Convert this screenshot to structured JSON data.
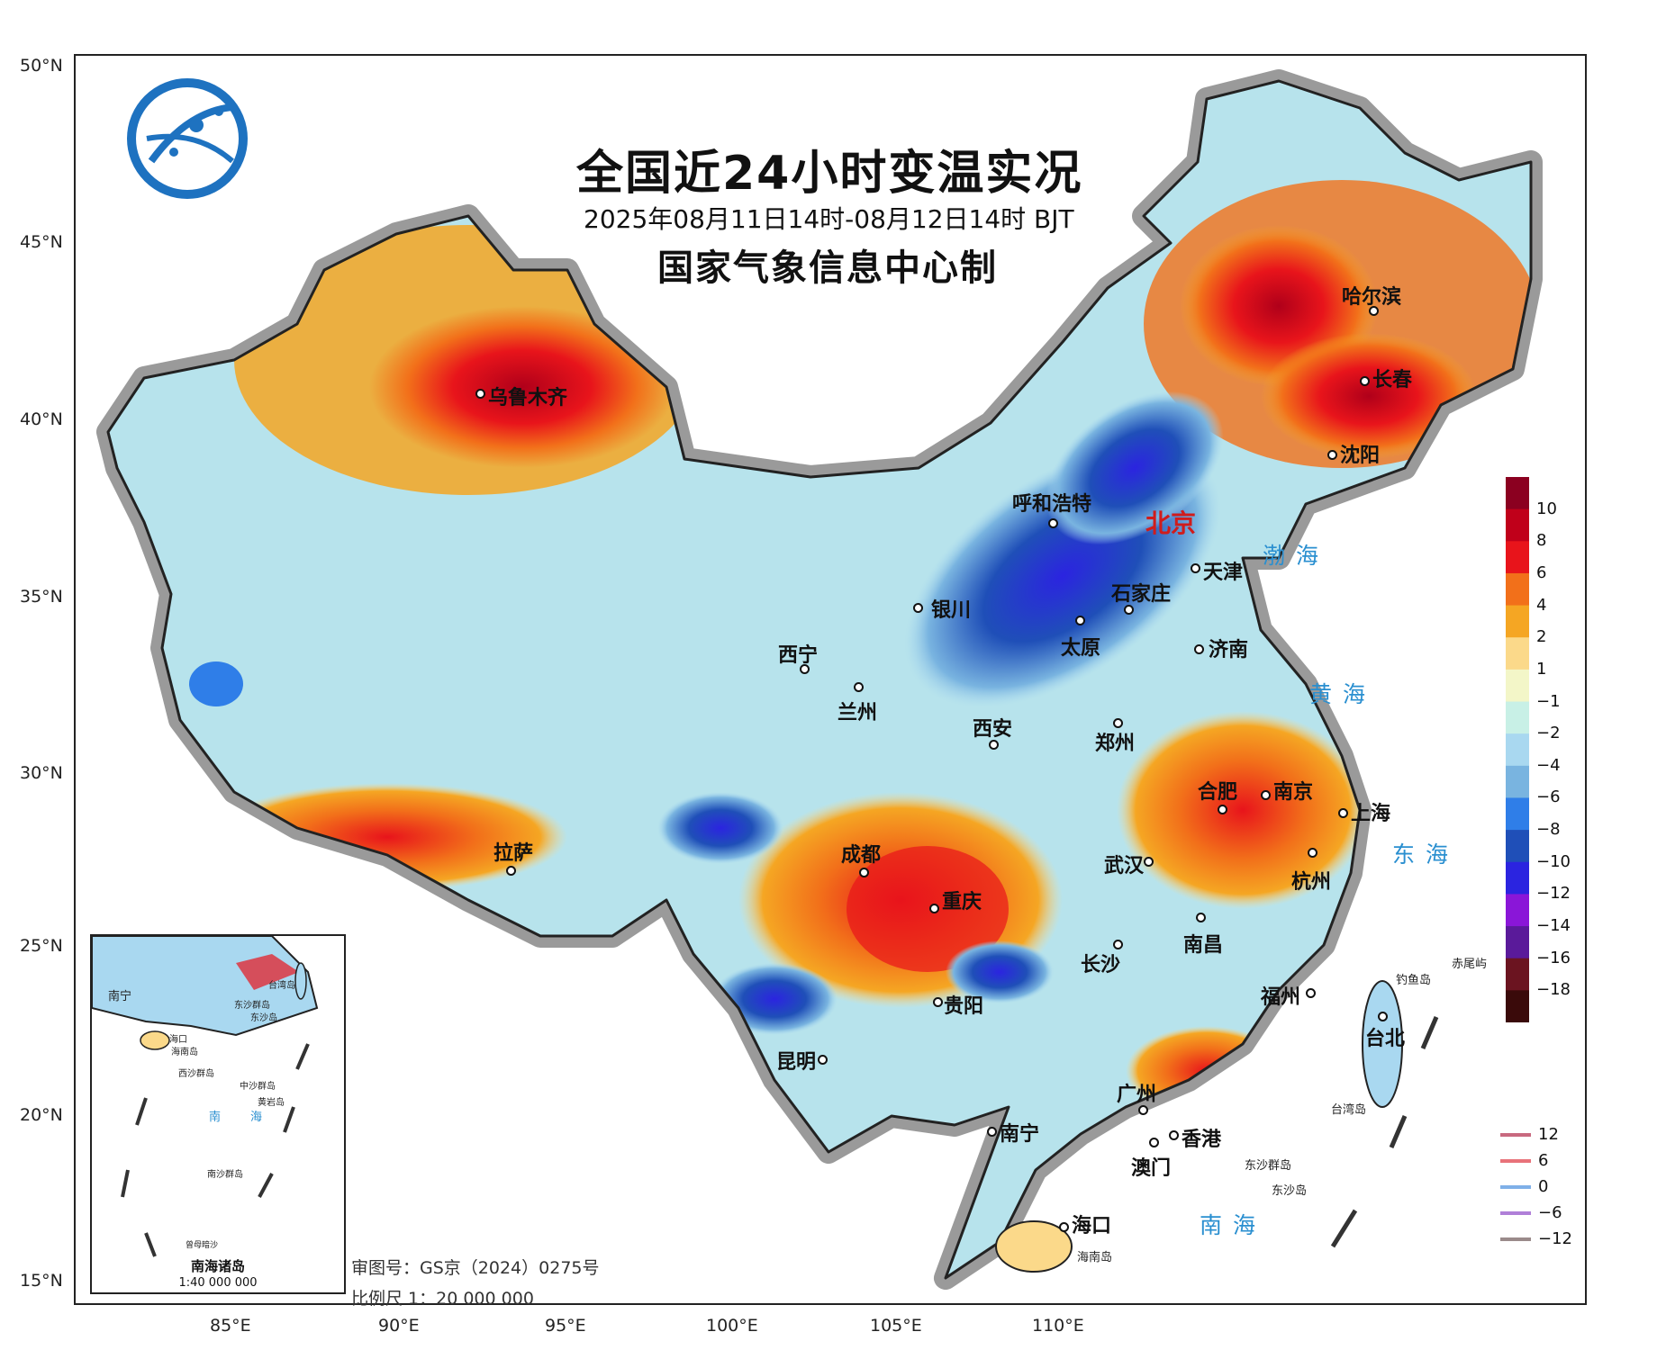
{
  "map": {
    "title": "全国近24小时变温实况",
    "period": "2025年08月11日14时-08月12日14时 BJT",
    "maker": "国家气象信息中心制",
    "approval_no": "审图号：GS京（2024）0275号",
    "scale": "比例尺 1：20 000 000",
    "lat_labels": [
      "50°N",
      "45°N",
      "40°N",
      "35°N",
      "30°N",
      "25°N",
      "20°N",
      "15°N"
    ],
    "lon_labels": [
      "85°E",
      "90°E",
      "95°E",
      "100°E",
      "105°E",
      "110°E"
    ]
  },
  "cities": {
    "urumqi": "乌鲁木齐",
    "harbin": "哈尔滨",
    "changchun": "长春",
    "shenyang": "沈阳",
    "hohhot": "呼和浩特",
    "beijing": "北京",
    "tianjin": "天津",
    "shijiazhuang": "石家庄",
    "yinchuan": "银川",
    "taiyuan": "太原",
    "jinan": "济南",
    "xining": "西宁",
    "lanzhou": "兰州",
    "xian": "西安",
    "zhengzhou": "郑州",
    "hefei": "合肥",
    "nanjing": "南京",
    "shanghai": "上海",
    "lhasa": "拉萨",
    "chengdu": "成都",
    "wuhan": "武汉",
    "hangzhou": "杭州",
    "chongqing": "重庆",
    "changsha": "长沙",
    "nanchang": "南昌",
    "guiyang": "贵阳",
    "fuzhou": "福州",
    "taipei": "台北",
    "kunming": "昆明",
    "guangzhou": "广州",
    "nanning": "南宁",
    "hongkong": "香港",
    "macau": "澳门",
    "haikou": "海口"
  },
  "seas": {
    "bohai": "渤海",
    "huanghai": "黄海",
    "donghai": "东海",
    "nanhai": "南海"
  },
  "islands": {
    "chiweiyu": "赤尾屿",
    "diaoyudao": "钓鱼岛",
    "taiwan": "台湾岛",
    "dongsha": "东沙群岛",
    "dongshadao": "东沙岛",
    "hainan": "海南岛"
  },
  "inset": {
    "title": "南海诸岛",
    "scale": "1:40 000 000",
    "labels": [
      "南宁",
      "台湾岛",
      "东沙群岛",
      "东沙岛",
      "海口",
      "海南岛",
      "西沙群岛",
      "中沙群岛",
      "黄岩岛",
      "南",
      "海",
      "南沙群岛",
      "曾母暗沙"
    ]
  },
  "legend": {
    "fill_levels": [
      "10",
      "8",
      "6",
      "4",
      "2",
      "1",
      "−1",
      "−2",
      "−4",
      "−6",
      "−8",
      "−10",
      "−12",
      "−14",
      "−16",
      "−18"
    ],
    "fill_colors": [
      "#8b0020",
      "#c0001a",
      "#e8141b",
      "#f2701a",
      "#f5a623",
      "#fbd98a",
      "#f3f6c8",
      "#c8f0e6",
      "#a9d8f0",
      "#79b4e0",
      "#2f7ee8",
      "#1f4fb8",
      "#2b24e0",
      "#8a16d8",
      "#5a1a9a",
      "#6b1420",
      "#3a0a0a"
    ],
    "line_levels": [
      "12",
      "6",
      "0",
      "−6",
      "−12"
    ],
    "line_colors": [
      "#c8697f",
      "#e8727a",
      "#7fb0e8",
      "#b07fd8",
      "#9a8a8a"
    ]
  }
}
